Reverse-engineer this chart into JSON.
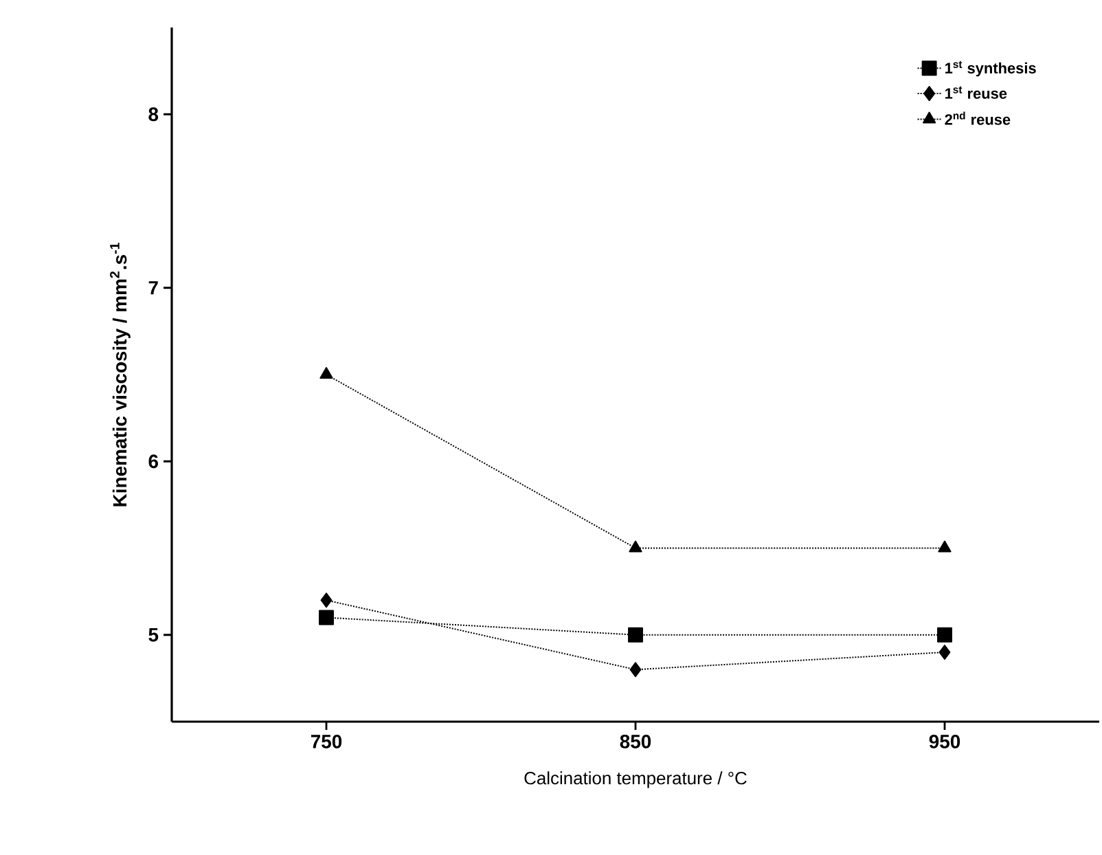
{
  "chart_data": {
    "type": "line",
    "xlabel": "Calcination temperature / °C",
    "ylabel": "Kinematic viscosity / mm$^{2}$.s$^{-1}$",
    "x": [
      750,
      850,
      950
    ],
    "xlim": [
      700,
      1000
    ],
    "xticks": [
      750,
      850,
      950
    ],
    "ylim": [
      4.5,
      8.5
    ],
    "yticks": [
      5,
      6,
      7,
      8
    ],
    "legend": "top right",
    "line_style": "dotted",
    "series": [
      {
        "name": "1$^{st}$ synthesis",
        "color": "#000000",
        "marker": "square",
        "values": [
          5.1,
          5.0,
          5.0
        ]
      },
      {
        "name": "1$^{st}$ reuse",
        "color": "#000000",
        "marker": "diamond",
        "values": [
          5.2,
          4.8,
          4.9
        ]
      },
      {
        "name": "2$^{nd}$ reuse",
        "color": "#000000",
        "marker": "triangle",
        "values": [
          6.5,
          5.5,
          5.5
        ]
      }
    ]
  }
}
